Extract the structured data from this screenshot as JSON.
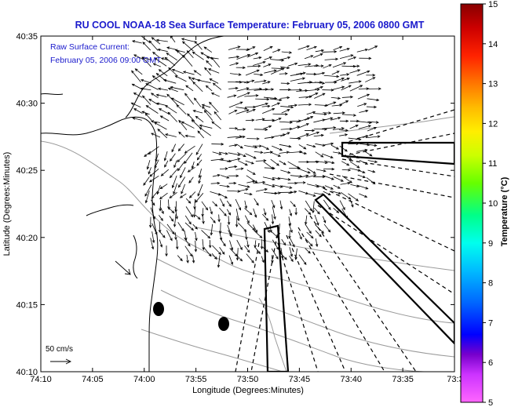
{
  "map": {
    "title": "RU COOL  NOAA-18  Sea Surface Temperature:  February 05, 2006 0800 GMT",
    "legend_line1": "Raw Surface Current:",
    "legend_line2": "February 05, 2006 09:00 GMT",
    "xlabel": "Longitude (Degrees:Minutes)",
    "ylabel": "Latitude (Degrees:Minutes)",
    "x_ticks": [
      "74:10",
      "74:05",
      "74:00",
      "73:55",
      "73:50",
      "73:45",
      "73:40",
      "73:35",
      "73:3"
    ],
    "y_ticks": [
      "40:35",
      "40:30",
      "40:25",
      "40:20",
      "40:15",
      "40:10"
    ],
    "scale_label": "50 cm/s",
    "colorbar_label": "Temperature (°C)",
    "colorbar_ticks": [
      "15",
      "14",
      "13",
      "12",
      "11",
      "10",
      "9",
      "8",
      "7",
      "6",
      "5"
    ],
    "colorbar_colors": [
      "#ff66ff",
      "#8800cc",
      "#0000ff",
      "#00aaff",
      "#00ffff",
      "#00ff88",
      "#66ff00",
      "#ffff00",
      "#ffbb00",
      "#ff5500",
      "#cc0000",
      "#880000"
    ]
  }
}
